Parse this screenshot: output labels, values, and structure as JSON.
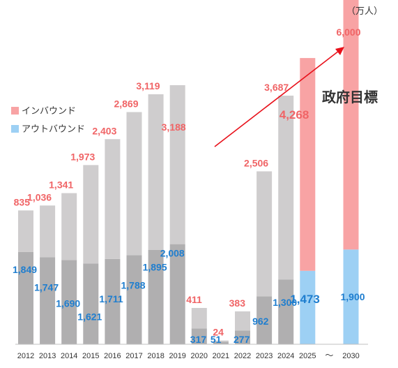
{
  "chart_data": {
    "type": "bar",
    "unit": "（万人）",
    "categories": [
      "2012",
      "2013",
      "2014",
      "2015",
      "2016",
      "2017",
      "2018",
      "2019",
      "2020",
      "2021",
      "2022",
      "2023",
      "2024",
      "2025",
      "〜",
      "2030"
    ],
    "series": [
      {
        "name": "インバウンド",
        "values": [
          835,
          1036,
          1341,
          1973,
          2403,
          2869,
          3119,
          3188,
          411,
          24,
          383,
          2506,
          3687,
          4268,
          null,
          6000
        ]
      },
      {
        "name": "アウトバウンド",
        "values": [
          1849,
          1747,
          1690,
          1621,
          1711,
          1788,
          1895,
          2008,
          317,
          51,
          277,
          962,
          1300,
          1473,
          null,
          1900
        ]
      }
    ],
    "inbound_labels": [
      "835",
      "1,036",
      "1,341",
      "1,973",
      "2,403",
      "2,869",
      "3,119",
      "3,188",
      "411",
      "24",
      "383",
      "2,506",
      "3,687",
      "4,268",
      "",
      "6,000"
    ],
    "outbound_labels": [
      "1,849",
      "1,747",
      "1,690",
      "1,621",
      "1,711",
      "1,788",
      "1,895",
      "2,008",
      "317",
      "51",
      "277",
      "962",
      "1,300",
      "1,473",
      "",
      "1,900"
    ],
    "highlight_categories": [
      "2025",
      "2030"
    ],
    "annotation": "政府目標",
    "legend": {
      "position": "left",
      "items": [
        "インバウンド",
        "アウトバウンド"
      ]
    },
    "colors": {
      "inbound_bar": "#cfcdce",
      "outbound_bar": "#b0afb0",
      "inbound_highlight": "#f8a3a4",
      "outbound_highlight": "#9dd0f4",
      "inbound_label": "#f06466",
      "outbound_label": "#1f7ecf",
      "arrow": "#e8101a",
      "axis": "#bfbfbf"
    },
    "ylim": [
      0,
      6000
    ]
  }
}
